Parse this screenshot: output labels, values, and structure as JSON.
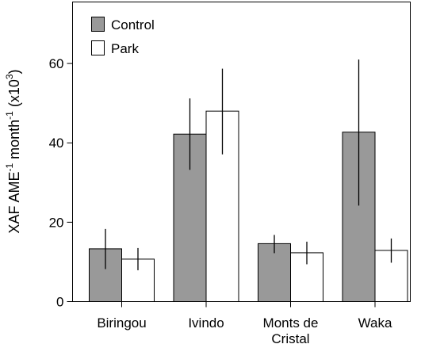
{
  "chart_data": {
    "type": "bar",
    "categories": [
      "Biringou",
      "Ivindo",
      "Monts de Cristal",
      "Waka"
    ],
    "category_lines": [
      [
        "Biringou"
      ],
      [
        "Ivindo"
      ],
      [
        "Monts de",
        "Cristal"
      ],
      [
        "Waka"
      ]
    ],
    "series": [
      {
        "name": "Control",
        "color": "#999999",
        "values": [
          13.3,
          42.2,
          14.6,
          42.7
        ],
        "error_low": [
          8.2,
          33.2,
          12.2,
          24.2
        ],
        "error_high": [
          18.3,
          51.2,
          16.8,
          61.0
        ]
      },
      {
        "name": "Park",
        "color": "#ffffff",
        "values": [
          10.7,
          48.0,
          12.3,
          12.9
        ],
        "error_low": [
          7.9,
          37.1,
          9.4,
          9.8
        ],
        "error_high": [
          13.5,
          58.7,
          15.1,
          15.9
        ]
      }
    ],
    "yticks": [
      0,
      20,
      40,
      60
    ],
    "ylim": [
      0,
      75.5
    ],
    "ylabel": {
      "main": "XAF AME",
      "sup1": "-1",
      "mid": " month",
      "sup2": "-1",
      "paren": " (x10",
      "sup3": "3",
      "close": ")"
    },
    "legend_position": "top-left",
    "grid": false
  }
}
